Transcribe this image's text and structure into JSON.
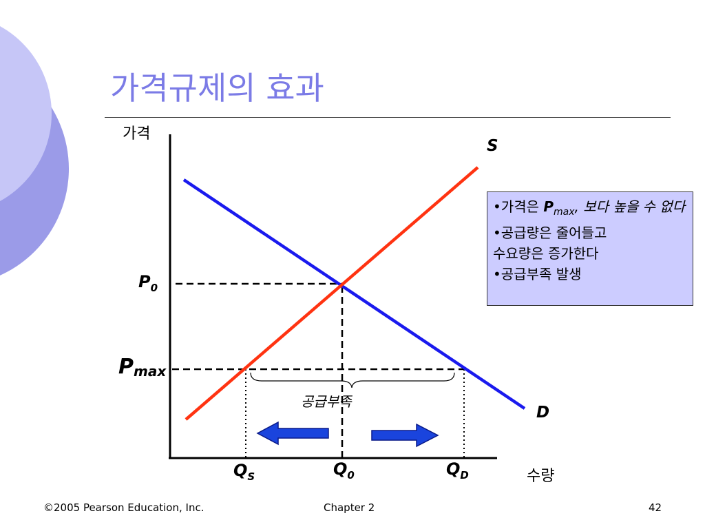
{
  "slide": {
    "title": "가격규제의 효과"
  },
  "chart": {
    "y_axis_label": "가격",
    "x_axis_label": "수량",
    "supply_label": "S",
    "demand_label": "D",
    "price_ticks": {
      "p0_main": "P",
      "p0_sub": "0",
      "pmax_main": "P",
      "pmax_sub": "max"
    },
    "quantity_ticks": {
      "qs_main": "Q",
      "qs_sub": "S",
      "q0_main": "Q",
      "q0_sub": "0",
      "qd_main": "Q",
      "qd_sub": "D"
    },
    "shortage_label": "공급부족"
  },
  "info_box": {
    "line1_prefix": "•가격은 ",
    "line1_p": "P",
    "line1_sub": "max",
    "line1_suffix": ", 보다 높을 수 없다",
    "line2": "•공급량은 줄어들고",
    "line3": "수요량은 증가한다",
    "line4": "•공급부족 발생"
  },
  "colors": {
    "supply": "#ff3311",
    "demand": "#1a1aee",
    "title": "#7b7be6",
    "box_bg": "#ccccff",
    "deco_circle_light": "#c6c6f7",
    "deco_circle_dark": "#9b9be8",
    "arrow": "#1a44dd"
  },
  "footer": {
    "copyright": "©2005 Pearson Education, Inc.",
    "chapter": "Chapter 2",
    "page": "42"
  }
}
